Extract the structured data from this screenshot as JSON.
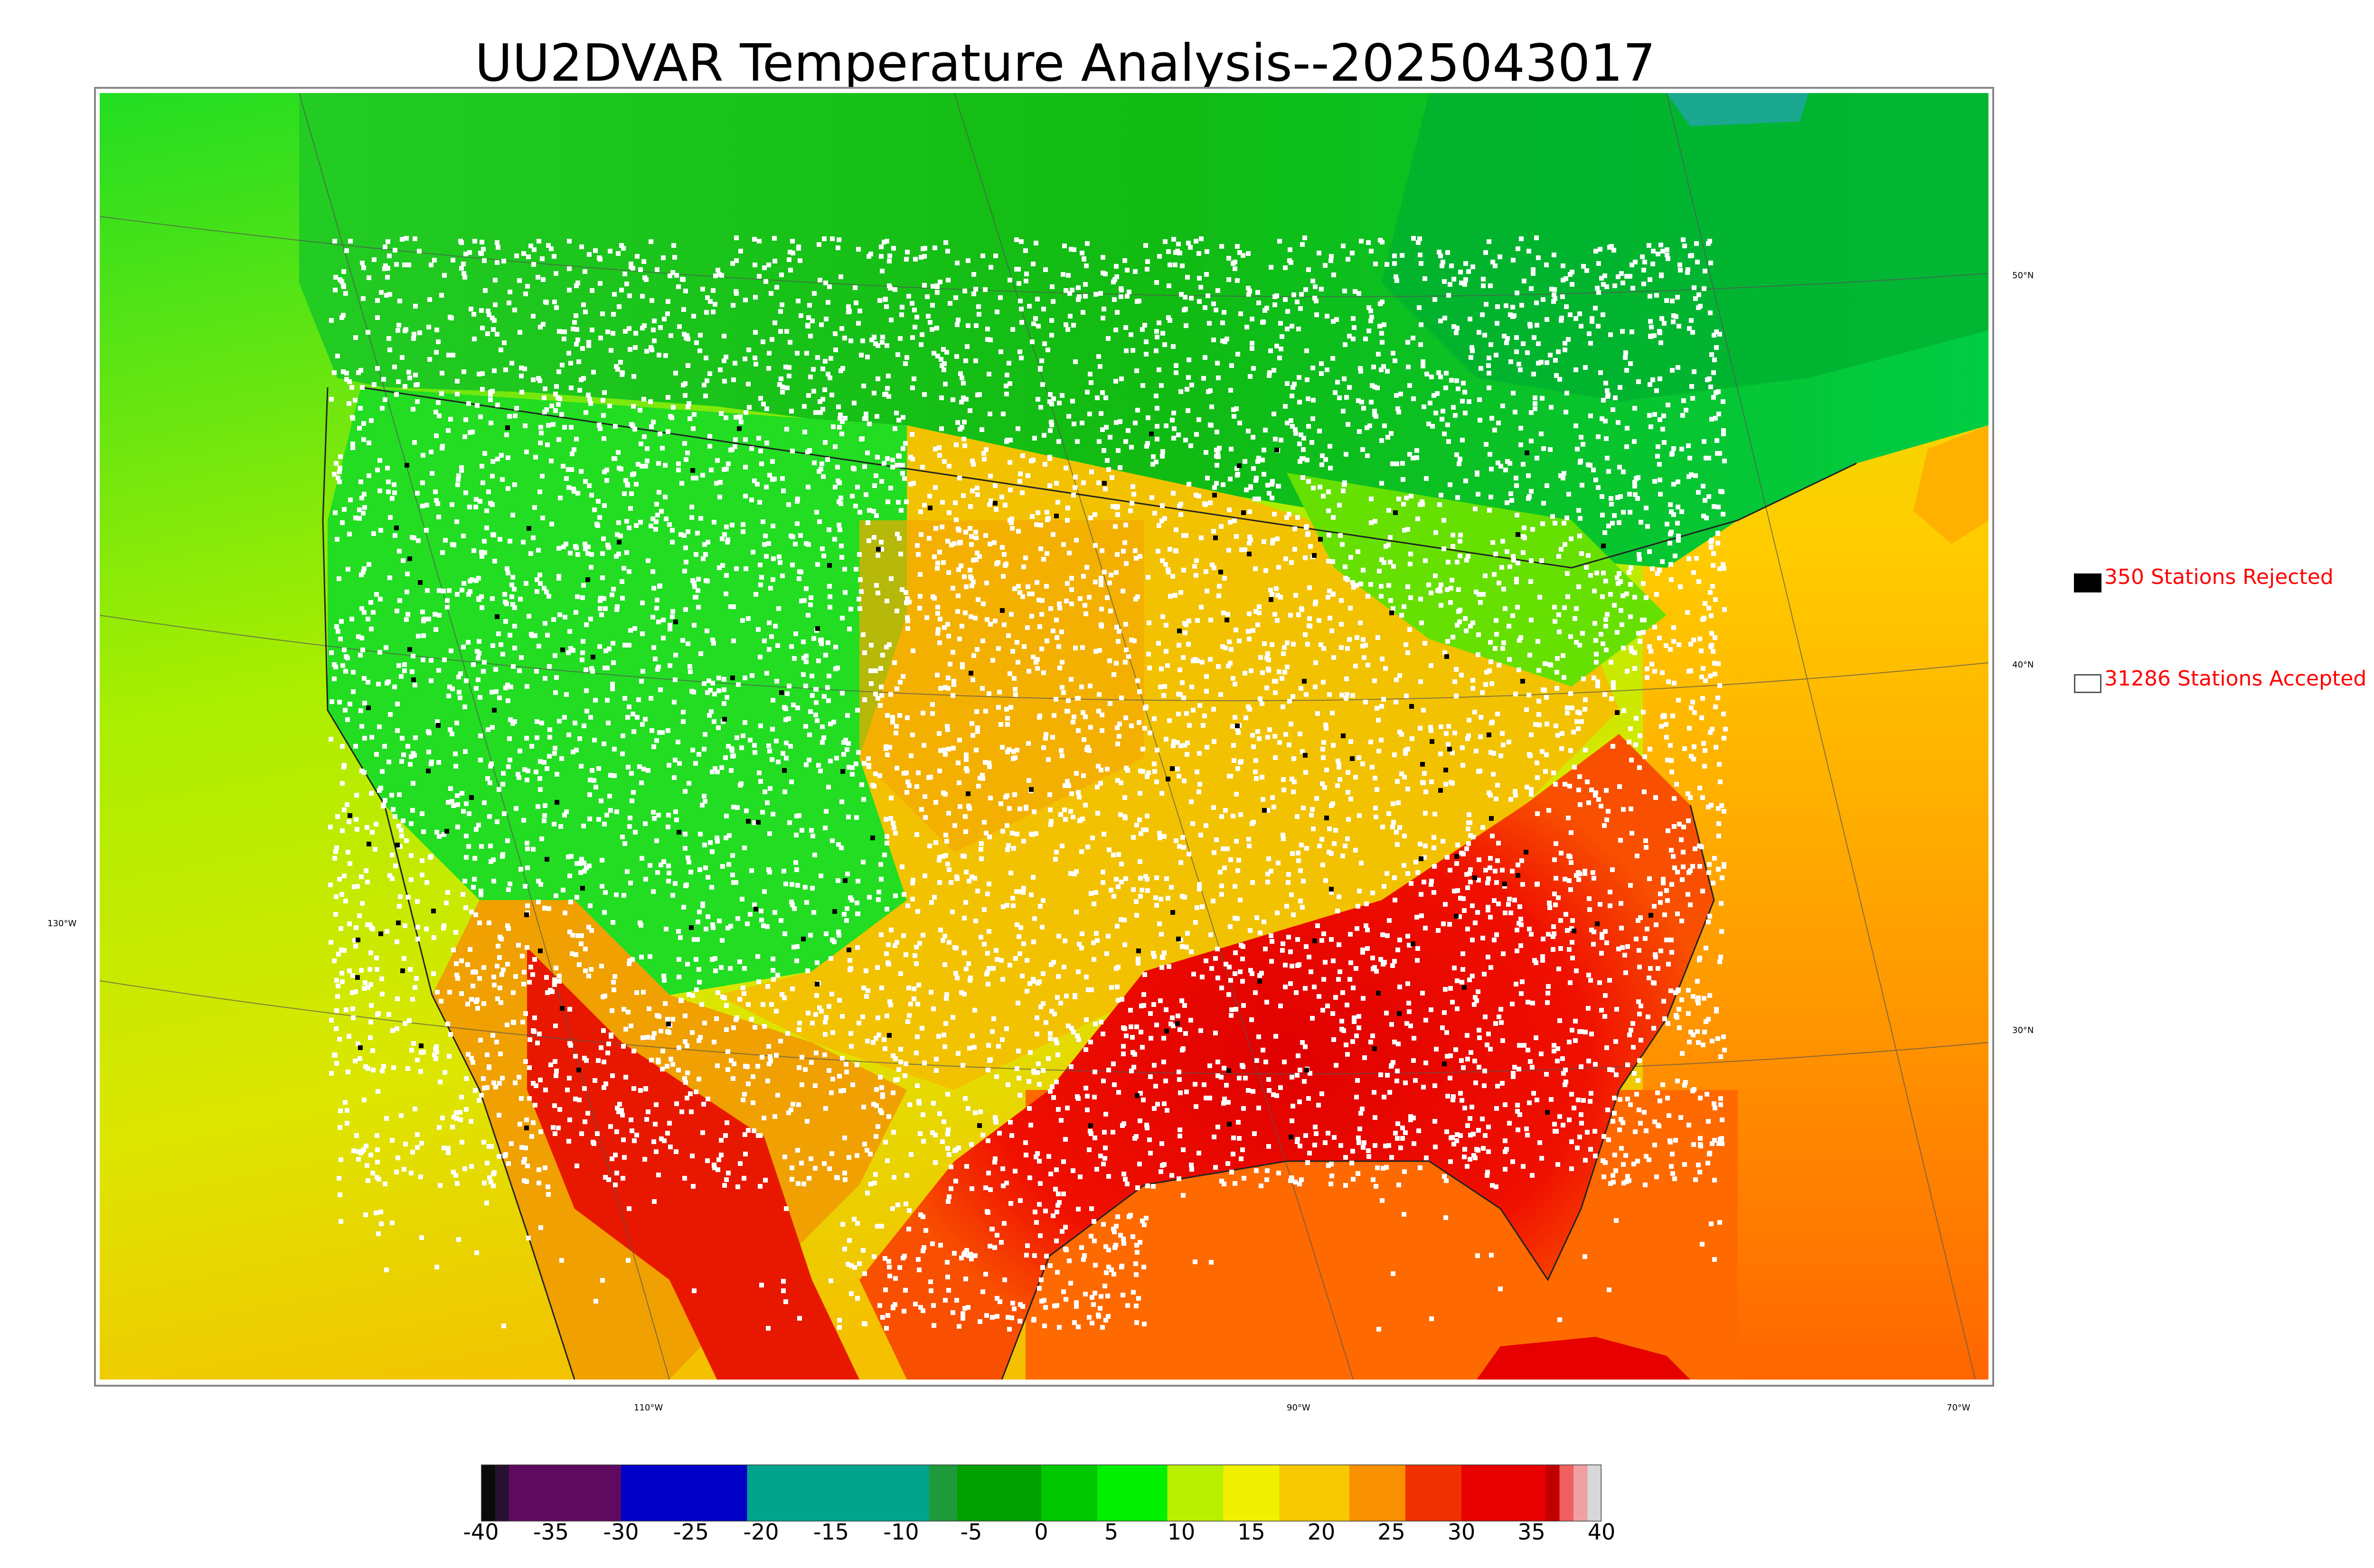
{
  "title": "UU2DVAR Temperature Analysis--2025043017",
  "legend": {
    "rejected": {
      "label": "350 Stations Rejected",
      "swatch_color": "#000000"
    },
    "accepted": {
      "label": "31286 Stations Accepted",
      "swatch_color": "#ffffff"
    }
  },
  "graticule": {
    "lat_labels": [
      "50°N",
      "40°N",
      "30°N"
    ],
    "lon_labels_bottom": [
      "110°W",
      "90°W",
      "70°W"
    ],
    "lon_label_left": "130°W"
  },
  "colorbar": {
    "ticks": [
      "-40",
      "-35",
      "-30",
      "-25",
      "-20",
      "-15",
      "-10",
      "-5",
      "0",
      "5",
      "10",
      "15",
      "20",
      "25",
      "30",
      "35",
      "40"
    ],
    "range": [
      -40,
      40
    ],
    "segments": [
      {
        "from": -40,
        "to": -39,
        "color": "#0a0a0a"
      },
      {
        "from": -39,
        "to": -38,
        "color": "#2a1030"
      },
      {
        "from": -38,
        "to": -30,
        "color": "#5e0a5e"
      },
      {
        "from": -30,
        "to": -21,
        "color": "#0000c8"
      },
      {
        "from": -21,
        "to": -8,
        "color": "#00a48c"
      },
      {
        "from": -8,
        "to": -6,
        "color": "#1f9a3a"
      },
      {
        "from": -6,
        "to": 0,
        "color": "#00a000"
      },
      {
        "from": 0,
        "to": 4,
        "color": "#00c800"
      },
      {
        "from": 4,
        "to": 9,
        "color": "#00f000"
      },
      {
        "from": 9,
        "to": 13,
        "color": "#b8f000"
      },
      {
        "from": 13,
        "to": 17,
        "color": "#f0f000"
      },
      {
        "from": 17,
        "to": 22,
        "color": "#f8c800"
      },
      {
        "from": 22,
        "to": 26,
        "color": "#f89000"
      },
      {
        "from": 26,
        "to": 30,
        "color": "#f03000"
      },
      {
        "from": 30,
        "to": 36,
        "color": "#e80000"
      },
      {
        "from": 36,
        "to": 37,
        "color": "#c00000"
      },
      {
        "from": 37,
        "to": 38,
        "color": "#f06060"
      },
      {
        "from": 38,
        "to": 39,
        "color": "#f0a0a0"
      },
      {
        "from": 39,
        "to": 40,
        "color": "#d8d8d8"
      }
    ]
  },
  "colors": {
    "ocean_north": "#33dd22",
    "ocean_south": "#ffaa00",
    "canada": "#11cc11",
    "west_plains": "#22dd22",
    "central": "#f0c000",
    "south": "#ee1100",
    "gulf": "#ff6600",
    "atlantic": "#ffaa22",
    "pacific_south": "#ccee00"
  }
}
